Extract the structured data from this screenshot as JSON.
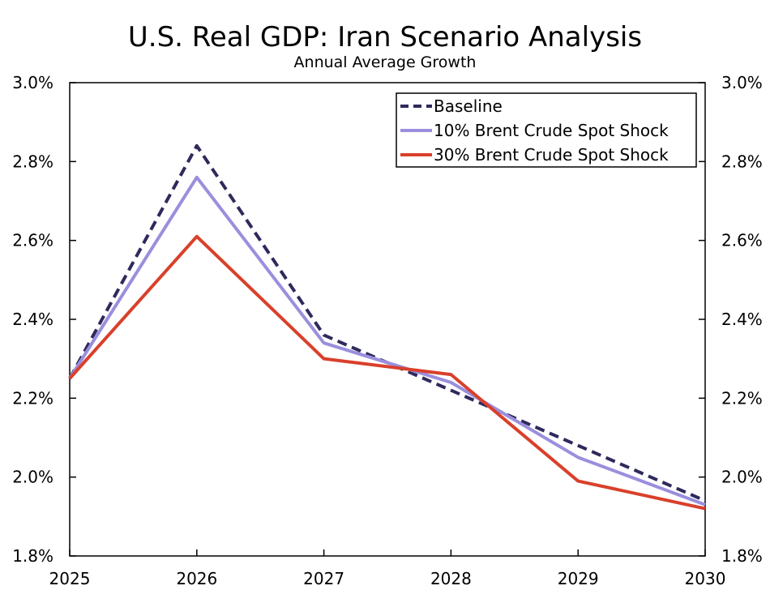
{
  "chart_data": {
    "type": "line",
    "title": "U.S. Real GDP: Iran Scenario Analysis",
    "subtitle": "Annual Average Growth",
    "xlabel": "",
    "ylabel": "",
    "categories": [
      "2025",
      "2026",
      "2027",
      "2028",
      "2029",
      "2030"
    ],
    "ylim": [
      1.8,
      3.0
    ],
    "ytick_step": 0.2,
    "ytick_labels": [
      "1.8%",
      "2.0%",
      "2.2%",
      "2.4%",
      "2.6%",
      "2.8%",
      "3.0%"
    ],
    "legend_position": "top-right",
    "grid": false,
    "series": [
      {
        "name": "Baseline",
        "color": "#2e2a5c",
        "style": "dashed",
        "values": [
          2.25,
          2.84,
          2.36,
          2.22,
          2.08,
          1.94
        ]
      },
      {
        "name": "10% Brent Crude Spot Shock",
        "color": "#9a8fdd",
        "style": "solid",
        "values": [
          2.25,
          2.76,
          2.34,
          2.24,
          2.05,
          1.93
        ]
      },
      {
        "name": "30% Brent Crude Spot Shock",
        "color": "#d9402b",
        "style": "solid",
        "values": [
          2.25,
          2.61,
          2.3,
          2.26,
          1.99,
          1.92
        ]
      }
    ]
  }
}
